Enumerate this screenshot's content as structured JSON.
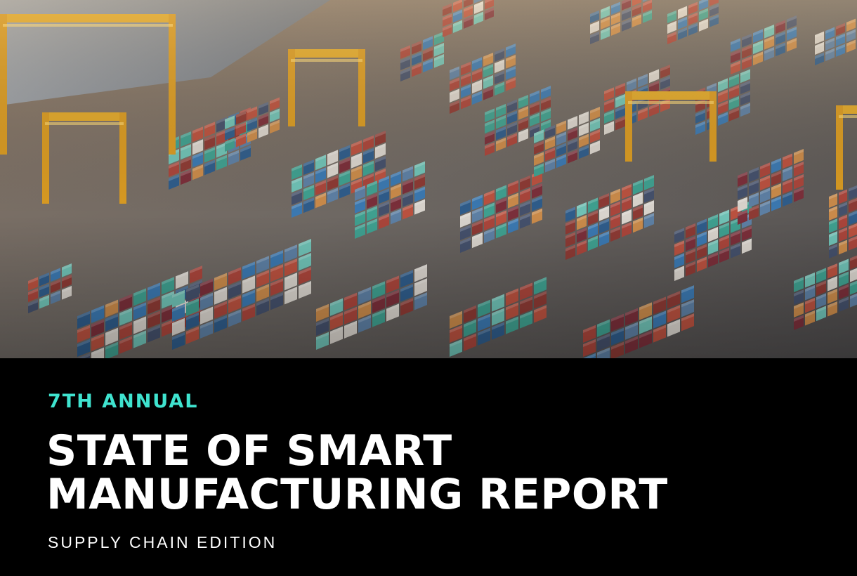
{
  "cover": {
    "eyebrow": "7TH ANNUAL",
    "title_line_1": "STATE OF SMART",
    "title_line_2": "MANUFACTURING REPORT",
    "edition": "SUPPLY CHAIN EDITION"
  },
  "colors": {
    "accent": "#3fe3cf",
    "background": "#000000",
    "text": "#ffffff"
  },
  "photo": {
    "subject": "container-port-aerial"
  }
}
